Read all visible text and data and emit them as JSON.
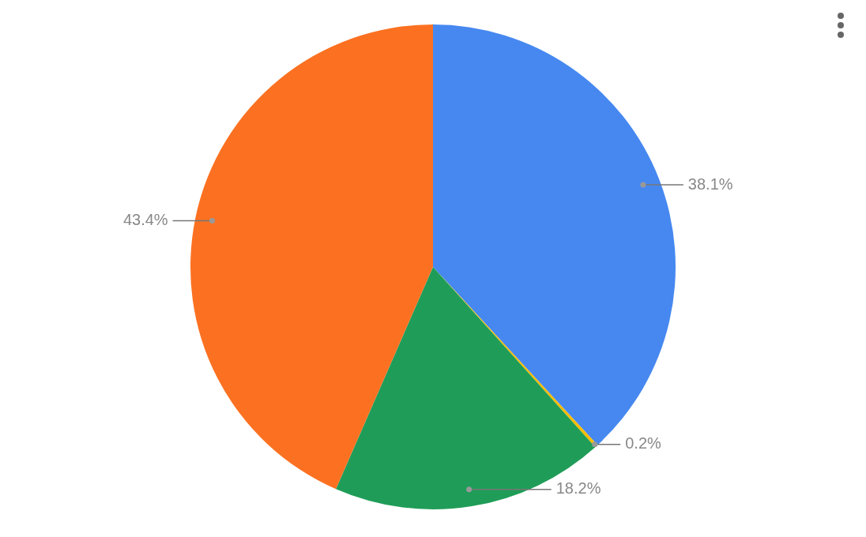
{
  "chart_data": {
    "type": "pie",
    "categories": [
      null,
      null,
      null,
      null
    ],
    "values": [
      38.1,
      0.2,
      18.2,
      43.4
    ],
    "colors": [
      "#4688f0",
      "#fbbc04",
      "#1f9d58",
      "#fb7121"
    ],
    "value_labels": [
      "38.1%",
      "0.2%",
      "18.2%",
      "43.4%"
    ],
    "legend": false
  }
}
